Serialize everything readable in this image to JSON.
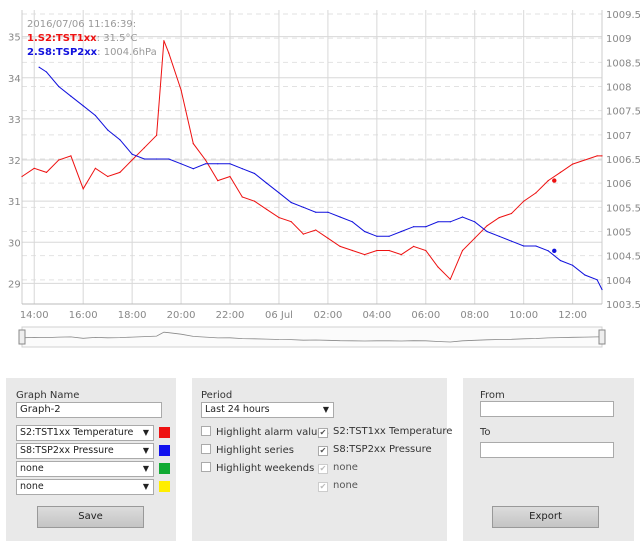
{
  "chart_data": {
    "type": "line",
    "legend": {
      "timestamp": "2016/07/06 11:16:39:",
      "entries": [
        {
          "prefix": "1.S2:TST1xx",
          "value": "31.5°C",
          "color": "#ee1111"
        },
        {
          "prefix": "2.S8:TSP2xx",
          "value": "1004.6hPa",
          "color": "#1111dd"
        }
      ]
    },
    "x_ticks": [
      "14:00",
      "16:00",
      "18:00",
      "20:00",
      "22:00",
      "06 Jul",
      "02:00",
      "04:00",
      "06:00",
      "08:00",
      "10:00",
      "12:00"
    ],
    "x_range": [
      13.5,
      37.2
    ],
    "y_left_ticks": [
      29,
      30,
      31,
      32,
      33,
      34,
      35
    ],
    "y_left_range": [
      28.5,
      35.55
    ],
    "y_right_ticks": [
      "1009.5",
      "1009",
      "1008.5",
      "1008",
      "1007.5",
      "1007",
      "1006.5",
      "1006",
      "1005.5",
      "1005",
      "1004.5",
      "1004",
      "1003.5"
    ],
    "y_right_range": [
      1003.5,
      1009.5
    ],
    "series": [
      {
        "name": "S2:TST1xx Temperature",
        "color": "#ee1111",
        "axis": "left",
        "x": [
          13.5,
          14.0,
          14.5,
          15.0,
          15.5,
          16.0,
          16.5,
          17.0,
          17.5,
          18.0,
          18.5,
          19.0,
          19.3,
          19.5,
          20.0,
          20.5,
          21.0,
          21.5,
          22.0,
          22.5,
          23.0,
          23.5,
          24.0,
          24.5,
          25.0,
          25.5,
          26.0,
          26.5,
          27.0,
          27.5,
          28.0,
          28.5,
          29.0,
          29.5,
          30.0,
          30.5,
          31.0,
          31.5,
          32.0,
          32.5,
          33.0,
          33.5,
          34.0,
          34.5,
          35.0,
          35.5,
          36.0,
          36.5,
          37.0,
          37.2
        ],
        "y": [
          31.6,
          31.8,
          31.7,
          32.0,
          32.1,
          31.3,
          31.8,
          31.6,
          31.7,
          32.0,
          32.3,
          32.6,
          34.9,
          34.6,
          33.7,
          32.4,
          32.0,
          31.5,
          31.6,
          31.1,
          31.0,
          30.8,
          30.6,
          30.5,
          30.2,
          30.3,
          30.1,
          29.9,
          29.8,
          29.7,
          29.8,
          29.8,
          29.7,
          29.9,
          29.8,
          29.4,
          29.1,
          29.8,
          30.1,
          30.4,
          30.6,
          30.7,
          31.0,
          31.2,
          31.5,
          31.7,
          31.9,
          32.0,
          32.1,
          32.1
        ]
      },
      {
        "name": "S8:TSP2xx Pressure",
        "color": "#1111dd",
        "axis": "right",
        "x": [
          14.2,
          14.5,
          15.0,
          15.5,
          16.0,
          16.5,
          17.0,
          17.5,
          18.0,
          18.5,
          19.0,
          19.5,
          20.0,
          20.5,
          21.0,
          21.5,
          22.0,
          22.5,
          23.0,
          23.5,
          24.0,
          24.5,
          25.0,
          25.5,
          26.0,
          26.5,
          27.0,
          27.5,
          28.0,
          28.5,
          29.0,
          29.5,
          30.0,
          30.5,
          31.0,
          31.5,
          32.0,
          32.5,
          33.0,
          33.5,
          34.0,
          34.5,
          35.0,
          35.5,
          36.0,
          36.5,
          37.0,
          37.2
        ],
        "y": [
          1008.4,
          1008.3,
          1008.0,
          1007.8,
          1007.6,
          1007.4,
          1007.1,
          1006.9,
          1006.6,
          1006.5,
          1006.5,
          1006.5,
          1006.4,
          1006.3,
          1006.4,
          1006.4,
          1006.4,
          1006.3,
          1006.2,
          1006.0,
          1005.8,
          1005.6,
          1005.5,
          1005.4,
          1005.4,
          1005.3,
          1005.2,
          1005.0,
          1004.9,
          1004.9,
          1005.0,
          1005.1,
          1005.1,
          1005.2,
          1005.2,
          1005.3,
          1005.2,
          1005.0,
          1004.9,
          1004.8,
          1004.7,
          1004.7,
          1004.6,
          1004.4,
          1004.3,
          1004.1,
          1004.0,
          1003.8
        ]
      }
    ]
  },
  "panels": {
    "graph": {
      "label": "Graph Name",
      "name_value": "Graph-2",
      "selects": [
        {
          "value": "S2:TST1xx Temperature",
          "color": "#ee1111"
        },
        {
          "value": "S8:TSP2xx Pressure",
          "color": "#1111ee"
        },
        {
          "value": "none",
          "color": "#11aa33"
        },
        {
          "value": "none",
          "color": "#ffee00"
        }
      ],
      "save_label": "Save"
    },
    "period": {
      "label": "Period",
      "value": "Last 24 hours",
      "options": [
        "Highlight alarm values",
        "Highlight series",
        "Highlight weekends"
      ],
      "series_checks": [
        "S2:TST1xx Temperature",
        "S8:TSP2xx Pressure",
        "none",
        "none"
      ]
    },
    "export": {
      "from_label": "From",
      "to_label": "To",
      "export_label": "Export"
    },
    "arrow_glyph": "▼",
    "check_glyph": "✔"
  }
}
